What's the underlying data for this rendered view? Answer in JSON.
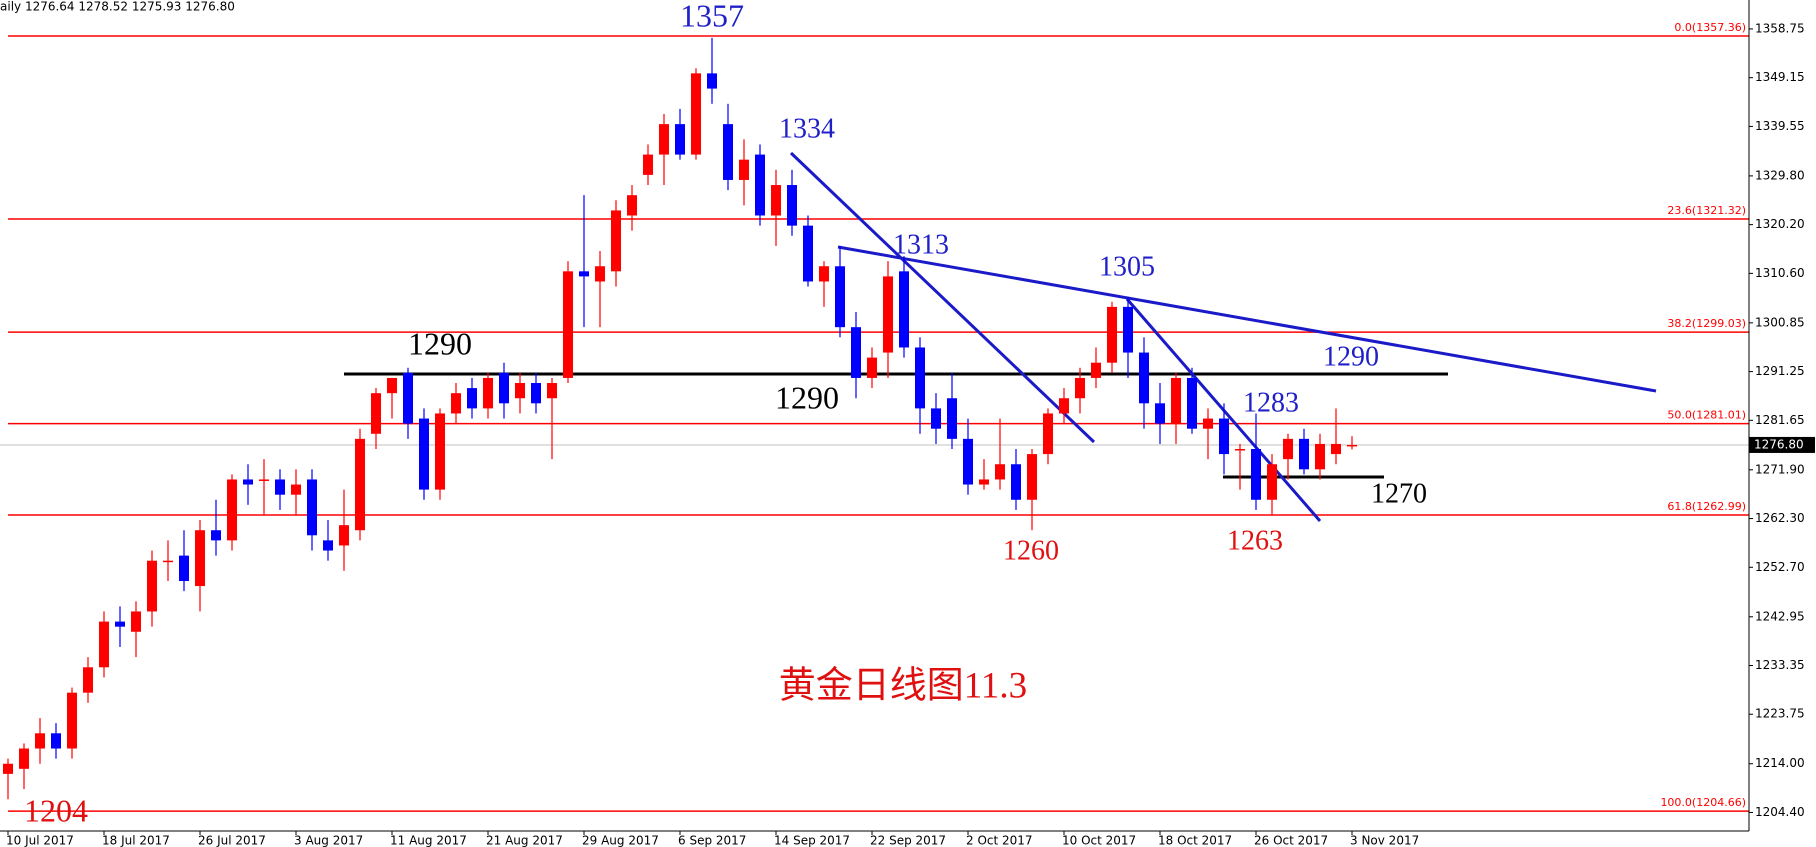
{
  "chart_data": {
    "type": "candlestick",
    "header": "aily 1276.64 1278.52 1275.93 1276.80",
    "categories": [
      "10 Jul 2017",
      null,
      null,
      null,
      null,
      null,
      "18 Jul 2017",
      null,
      null,
      null,
      null,
      null,
      "26 Jul 2017",
      null,
      null,
      null,
      null,
      null,
      "3 Aug 2017",
      null,
      null,
      null,
      null,
      null,
      "11 Aug 2017",
      null,
      null,
      null,
      null,
      null,
      "21 Aug 2017",
      null,
      null,
      null,
      null,
      null,
      "29 Aug 2017",
      null,
      null,
      null,
      null,
      null,
      "6 Sep 2017",
      null,
      null,
      null,
      null,
      null,
      "14 Sep 2017",
      null,
      null,
      null,
      null,
      null,
      "22 Sep 2017",
      null,
      null,
      null,
      null,
      null,
      "2 Oct 2017",
      null,
      null,
      null,
      null,
      null,
      "10 Oct 2017",
      null,
      null,
      null,
      null,
      null,
      "18 Oct 2017",
      null,
      null,
      null,
      null,
      null,
      "26 Oct 2017",
      null,
      null,
      null,
      null,
      null,
      "3 Nov 2017"
    ],
    "series": {
      "open": [
        1212,
        1213,
        1217,
        1220,
        1217,
        1228,
        1233,
        1242,
        1240,
        1244,
        1254,
        1255,
        1249,
        1260,
        1258,
        1270,
        1270,
        1270,
        1267,
        1270,
        1258,
        1257,
        1260,
        1279,
        1287,
        1291,
        1282,
        1268,
        1283,
        1288,
        1284,
        1291,
        1286,
        1289,
        1286,
        1290,
        1311,
        1309,
        1311,
        1322,
        1330,
        1334,
        1340,
        1334,
        1350,
        1340,
        1329,
        1334,
        1322,
        1328,
        1320,
        1309,
        1312,
        1300,
        1290,
        1295,
        1311,
        1296,
        1284,
        1286,
        1278,
        1269,
        1270,
        1273,
        1266,
        1275,
        1283,
        1286,
        1290,
        1293,
        1304,
        1295,
        1285,
        1281,
        1290,
        1280,
        1282,
        1276,
        1276,
        1266,
        1274,
        1278,
        1272,
        1275,
        1276.64
      ],
      "high": [
        1215,
        1218,
        1223,
        1222,
        1229,
        1235,
        1244,
        1245,
        1246,
        1256,
        1258,
        1260,
        1262,
        1266,
        1271,
        1273,
        1274,
        1272,
        1272,
        1272,
        1262,
        1268,
        1280,
        1288,
        1290,
        1292,
        1284,
        1284,
        1289,
        1290,
        1291,
        1293,
        1291,
        1291,
        1290,
        1313,
        1326,
        1315,
        1325,
        1328,
        1336,
        1342,
        1343,
        1351,
        1357,
        1344,
        1337,
        1336,
        1331,
        1331,
        1322,
        1313,
        1316,
        1303,
        1296,
        1313,
        1314,
        1298,
        1287,
        1291,
        1282,
        1274,
        1282,
        1276,
        1276,
        1284,
        1288,
        1292,
        1296,
        1305,
        1306,
        1298,
        1289,
        1291,
        1292,
        1284,
        1285,
        1277,
        1283,
        1275,
        1279,
        1280,
        1279,
        1284,
        1278.52
      ],
      "low": [
        1207,
        1209,
        1214,
        1215,
        1215,
        1226,
        1231,
        1237,
        1235,
        1241,
        1250,
        1248,
        1244,
        1255,
        1256,
        1265,
        1263,
        1264,
        1263,
        1256,
        1254,
        1252,
        1258,
        1276,
        1282,
        1278,
        1266,
        1266,
        1281,
        1282,
        1282,
        1282,
        1283,
        1283,
        1274,
        1289,
        1300,
        1300,
        1308,
        1319,
        1328,
        1328,
        1333,
        1333,
        1344,
        1327,
        1324,
        1320,
        1316,
        1318,
        1308,
        1304,
        1298,
        1286,
        1288,
        1290,
        1294,
        1279,
        1277,
        1276,
        1267,
        1268,
        1268,
        1264,
        1260,
        1273,
        1281,
        1283,
        1288,
        1291,
        1290,
        1280,
        1277,
        1277,
        1279,
        1274,
        1271,
        1268,
        1264,
        1263,
        1270,
        1271,
        1270,
        1273,
        1275.93
      ],
      "close": [
        1214,
        1217,
        1220,
        1217,
        1228,
        1233,
        1242,
        1241,
        1244,
        1254,
        1254,
        1250,
        1260,
        1258,
        1270,
        1269,
        1270,
        1267,
        1269,
        1259,
        1256,
        1261,
        1278,
        1287,
        1290,
        1281,
        1268,
        1283,
        1287,
        1284,
        1290,
        1285,
        1289,
        1285,
        1289,
        1311,
        1310,
        1312,
        1323,
        1326,
        1334,
        1340,
        1334,
        1350,
        1347,
        1329,
        1333,
        1322,
        1328,
        1320,
        1309,
        1312,
        1300,
        1290,
        1294,
        1310,
        1296,
        1284,
        1280,
        1278,
        1269,
        1270,
        1273,
        1266,
        1275,
        1283,
        1286,
        1290,
        1293,
        1304,
        1295,
        1285,
        1281,
        1290,
        1280,
        1282,
        1275,
        1276,
        1266,
        1273,
        1278,
        1272,
        1277,
        1277,
        1276.8
      ]
    },
    "up_color": "#ff0000",
    "down_color": "#0000ff",
    "ylim": [
      1200.75,
      1364.45
    ],
    "yticks": [
      1358.75,
      1349.15,
      1339.55,
      {
        "value": 1329.8,
        "label": "1329.80"
      },
      {
        "value": 1320.2,
        "label": "1320.20"
      },
      {
        "value": 1310.6,
        "label": "1310.60"
      },
      1300.85,
      1291.25,
      1281.65,
      {
        "value": 1271.9,
        "label": "1271.90"
      },
      {
        "value": 1262.3,
        "label": "1262.30"
      },
      {
        "value": 1252.7,
        "label": "1252.70"
      },
      1242.95,
      1233.35,
      1223.75,
      {
        "value": 1214,
        "label": "1214.00"
      },
      {
        "value": 1204.4,
        "label": "1204.40"
      }
    ],
    "last_price": {
      "value": 1276.8,
      "label": "1276.80"
    },
    "fib_levels": [
      {
        "value": 1357.36,
        "label": "0.0(1357.36)"
      },
      {
        "value": 1321.32,
        "label": "23.6(1321.32)"
      },
      {
        "value": 1299.03,
        "label": "38.2(1299.03)"
      },
      {
        "value": 1281.01,
        "label": "50.0(1281.01)"
      },
      {
        "value": 1262.99,
        "label": "61.8(1262.99)"
      },
      {
        "value": 1204.66,
        "label": "100.0(1204.66)"
      }
    ],
    "fib_color": "#ff0000",
    "annotations": [
      {
        "text": "1357",
        "color": "#2020c8"
      },
      {
        "text": "1334",
        "color": "#2020c8"
      },
      {
        "text": "1313",
        "color": "#2020c8"
      },
      {
        "text": "1305",
        "color": "#2020c8"
      },
      {
        "text": "1290",
        "color": "#2020c8"
      },
      {
        "text": "1283",
        "color": "#2020c8"
      },
      {
        "text": "1290",
        "color": "#000000"
      },
      {
        "text": "1290",
        "color": "#000000"
      },
      {
        "text": "1260",
        "color": "#e01010"
      },
      {
        "text": "1263",
        "color": "#e01010"
      },
      {
        "text": "1270",
        "color": "#000000"
      },
      {
        "text": "1204",
        "color": "#e01010"
      },
      {
        "text": "黄金日线图11.3",
        "color": "#e01010"
      }
    ]
  }
}
